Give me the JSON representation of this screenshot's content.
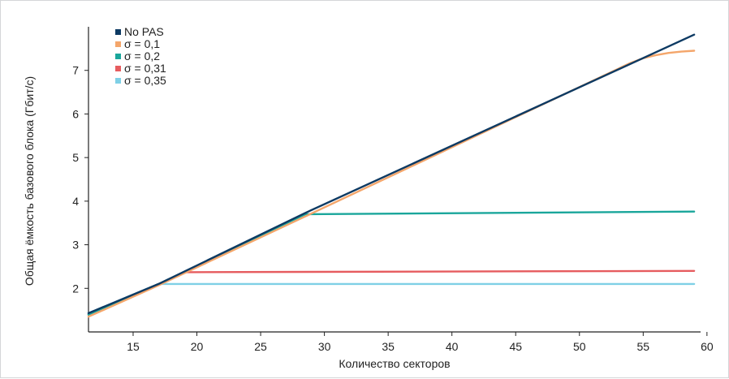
{
  "chart_data": {
    "type": "line",
    "title": "",
    "xlabel": "Количество секторов",
    "ylabel": "Общая ёмкость базового блока (Гбит/с)",
    "xlim": [
      11.5,
      59.5
    ],
    "ylim": [
      1.0,
      8.0
    ],
    "x_ticks": [
      "15",
      "20",
      "25",
      "30",
      "35",
      "40",
      "45",
      "50",
      "55",
      "60"
    ],
    "y_ticks": [
      "2",
      "3",
      "4",
      "5",
      "6",
      "7"
    ],
    "grid": false,
    "legend_position": "top-left",
    "series": [
      {
        "name": "No PAS",
        "color": "#0d3a63",
        "points": [
          [
            11.5,
            1.43
          ],
          [
            17,
            2.1
          ],
          [
            28.5,
            3.73
          ],
          [
            59,
            7.82
          ]
        ]
      },
      {
        "name": "σ = 0,1",
        "color": "#f4a66b",
        "points": [
          [
            11.5,
            1.35
          ],
          [
            17,
            2.07
          ],
          [
            28.5,
            3.65
          ],
          [
            54,
            7.17
          ],
          [
            55,
            7.28
          ],
          [
            56,
            7.35
          ],
          [
            57,
            7.4
          ],
          [
            58,
            7.43
          ],
          [
            59,
            7.45
          ]
        ]
      },
      {
        "name": "σ = 0,2",
        "color": "#1aa69b",
        "points": [
          [
            11.5,
            1.4
          ],
          [
            17,
            2.1
          ],
          [
            28.5,
            3.7
          ],
          [
            59,
            3.76
          ]
        ]
      },
      {
        "name": "σ = 0,31",
        "color": "#e65c5f",
        "points": [
          [
            11.5,
            1.4
          ],
          [
            17,
            2.1
          ],
          [
            19,
            2.37
          ],
          [
            59,
            2.4
          ]
        ]
      },
      {
        "name": "σ = 0,35",
        "color": "#7fd0e6",
        "points": [
          [
            11.5,
            1.43
          ],
          [
            17,
            2.1
          ],
          [
            59,
            2.1
          ]
        ]
      }
    ]
  }
}
